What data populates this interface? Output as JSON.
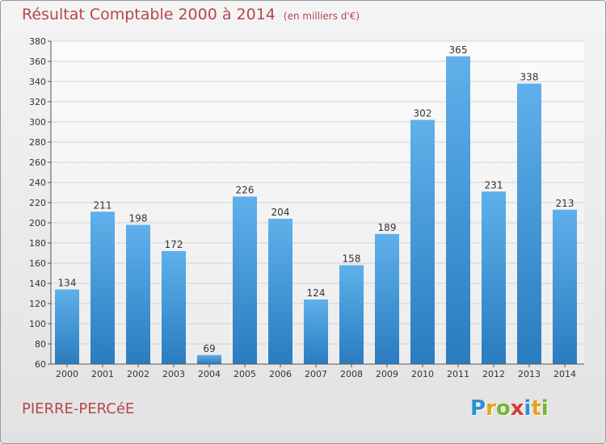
{
  "title": "Résultat Comptable 2000 à 2014",
  "subtitle": "(en milliers d'€)",
  "commune": "PIERRE-PERCéE",
  "logo": {
    "letters": [
      "P",
      "r",
      "o",
      "x",
      "i",
      "t",
      "i"
    ],
    "colors": [
      "#2d8fd6",
      "#e8a21f",
      "#74b72e",
      "#d93a3a",
      "#2d8fd6",
      "#e8a21f",
      "#74b72e"
    ]
  },
  "chart_data": {
    "type": "bar",
    "categories": [
      "2000",
      "2001",
      "2002",
      "2003",
      "2004",
      "2005",
      "2006",
      "2007",
      "2008",
      "2009",
      "2010",
      "2011",
      "2012",
      "2013",
      "2014"
    ],
    "values": [
      134,
      211,
      198,
      172,
      69,
      226,
      204,
      124,
      158,
      189,
      302,
      365,
      231,
      338,
      213
    ],
    "title": "Résultat Comptable 2000 à 2014",
    "subtitle": "(en milliers d'€)",
    "xlabel": "",
    "ylabel": "",
    "ylim": [
      60,
      380
    ],
    "yticks": [
      60,
      80,
      100,
      120,
      140,
      160,
      180,
      200,
      220,
      240,
      260,
      280,
      300,
      320,
      340,
      360,
      380
    ],
    "grid": true,
    "bar_color": "#3f93d6"
  }
}
